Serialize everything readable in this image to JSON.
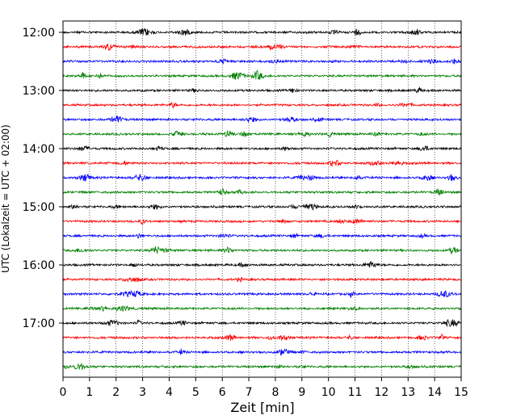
{
  "chart_data": {
    "type": "line",
    "chart_kind": "helicorder",
    "title": "",
    "xlabel": "Zeit  [min]",
    "ylabel": "UTC (Lokalzeit = UTC + 02:00)",
    "xlim": [
      0,
      15
    ],
    "x_ticks": [
      "0",
      "1",
      "2",
      "3",
      "4",
      "5",
      "6",
      "7",
      "8",
      "9",
      "10",
      "11",
      "12",
      "13",
      "14",
      "15"
    ],
    "y_ticks": [
      {
        "label": "12:00",
        "row": 0
      },
      {
        "label": "13:00",
        "row": 4
      },
      {
        "label": "14:00",
        "row": 8
      },
      {
        "label": "15:00",
        "row": 12
      },
      {
        "label": "16:00",
        "row": 16
      },
      {
        "label": "17:00",
        "row": 20
      }
    ],
    "trace_start": "12:00",
    "trace_interval_minutes": 15,
    "trace_count": 24,
    "trace_colors": [
      "#000000",
      "#ff0000",
      "#0000ff",
      "#008000"
    ],
    "x_grid": "dotted vertical lines at each minute",
    "legend": "none"
  }
}
